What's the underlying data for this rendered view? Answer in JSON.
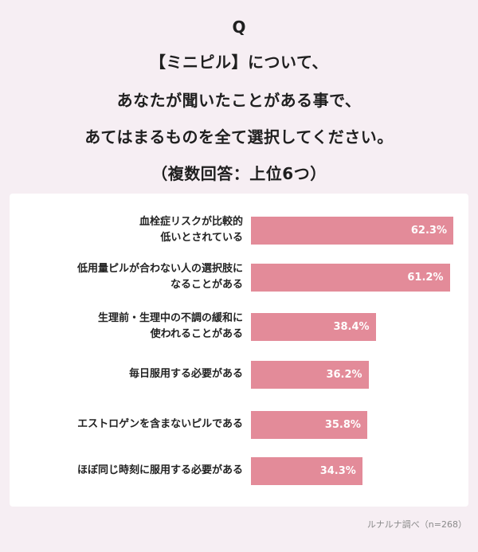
{
  "question": {
    "q": "Q",
    "lines": [
      "【ミニピル】について、",
      "あなたが聞いたことがある事で、",
      "あてはまるものを全て選択してください。",
      "（複数回答：上位6つ）"
    ]
  },
  "chart_data": {
    "type": "bar",
    "orientation": "horizontal",
    "categories": [
      [
        "血栓症リスクが比較的",
        "低いとされている"
      ],
      [
        "低用量ピルが合わない人の選択肢に",
        "なることがある"
      ],
      [
        "生理前・生理中の不調の緩和に",
        "使われることがある"
      ],
      [
        "毎日服用する必要がある"
      ],
      [
        "エストロゲンを含まないピルである"
      ],
      [
        "ほぼ同じ時刻に服用する必要がある"
      ]
    ],
    "values": [
      62.3,
      61.2,
      38.4,
      36.2,
      35.8,
      34.3
    ],
    "value_labels": [
      "62.3%",
      "61.2%",
      "38.4%",
      "36.2%",
      "35.8%",
      "34.3%"
    ],
    "bar_color": "#e38b99",
    "unit": "%"
  },
  "source": "ルナルナ調べ（n=268）"
}
